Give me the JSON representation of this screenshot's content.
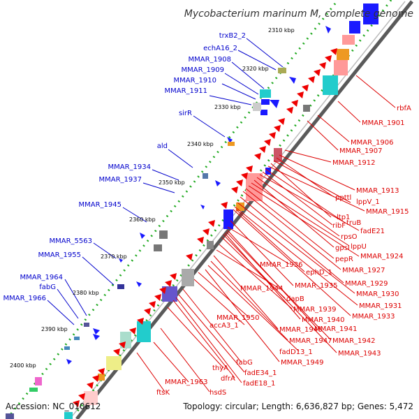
{
  "title": "Mycobacterium marinum M, complete genome",
  "footer": {
    "accession": "Accession: NC_010612",
    "summary": "Topology: circular; Length: 6,636,827 bp; Genes: 5,472"
  },
  "colors": {
    "backbone": "#666666",
    "left_labels": "#0000cc",
    "right_labels": "#dd0000",
    "tick_dots": "#009900"
  },
  "scale_ticks": [
    "2310 kbp",
    "2320 kbp",
    "2330 kbp",
    "2340 kbp",
    "2350 kbp",
    "2360 kbp",
    "2370 kbp",
    "2380 kbp",
    "2390 kbp",
    "2400 kbp"
  ],
  "left_labels": [
    "trxB2_2",
    "echA16_2",
    "MMAR_1908",
    "MMAR_1909",
    "MMAR_1910",
    "MMAR_1911",
    "sirR",
    "ald",
    "MMAR_1934",
    "MMAR_1937",
    "MMAR_1945",
    "MMAR_5563",
    "MMAR_1955",
    "MMAR_1964",
    "fabG",
    "MMAR_1966"
  ],
  "right_labels": [
    "rbfA",
    "MMAR_1901",
    "MMAR_1906",
    "MMAR_1907",
    "MMAR_1912",
    "MMAR_1913",
    "ppttl",
    "lppV_1",
    "ltp1",
    "MMAR_1915",
    "truB",
    "ribF",
    "fadE21",
    "rpsO",
    "gpsI",
    "lppU",
    "MMAR_1924",
    "pepR",
    "MMAR_1927",
    "MMAR_1936",
    "ephD_1",
    "MMAR_1935",
    "MMAR_1929",
    "MMAR_1930",
    "MMAR_1944",
    "dapB",
    "MMAR_1931",
    "MMAR_1939",
    "MMAR_1940",
    "MMAR_1933",
    "MMAR_1950",
    "accA3_1",
    "MMAR_1946",
    "MMAR_1941",
    "MMAR_1947",
    "MMAR_1942",
    "fadD13_1",
    "MMAR_1943",
    "MMAR_1949",
    "fabG",
    "fadE34_1",
    "thyA",
    "dfrA",
    "fadE18_1",
    "MMAR_1963",
    "ftsK",
    "hsdS"
  ]
}
